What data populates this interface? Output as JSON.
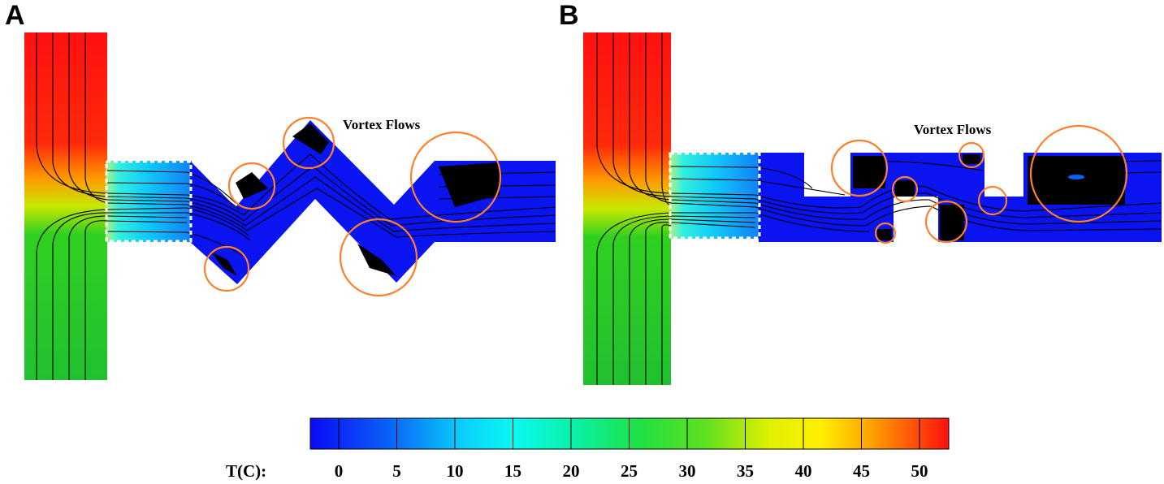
{
  "panels": [
    {
      "id": "A",
      "label": "A",
      "annotation": "Vortex Flows"
    },
    {
      "id": "B",
      "label": "B",
      "annotation": "Vortex Flows"
    }
  ],
  "colorbar": {
    "title": "T(C):",
    "ticks": [
      "0",
      "5",
      "10",
      "15",
      "20",
      "25",
      "30",
      "35",
      "40",
      "45",
      "50"
    ],
    "colors": [
      "#0a14f5",
      "#0a5cf7",
      "#0aa8fa",
      "#0af0f0",
      "#0af0a0",
      "#10e050",
      "#30d820",
      "#90e810",
      "#f8f800",
      "#f8a000",
      "#f85000",
      "#f80a0a"
    ]
  },
  "field_colors": {
    "hot": "#ff1010",
    "warm": "#ffa000",
    "mid": "#20c030",
    "cold": "#0a14f0",
    "vortex_core": "#000000",
    "circle": "#ff7f2a"
  }
}
